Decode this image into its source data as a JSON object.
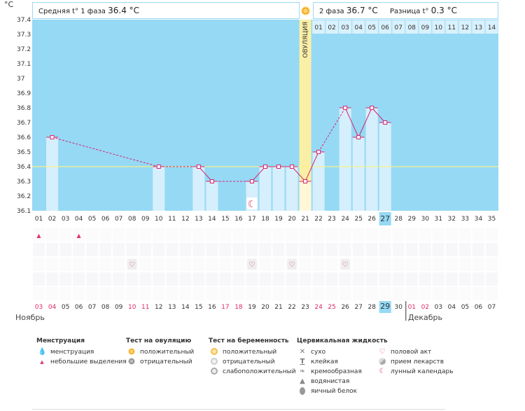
{
  "header": {
    "unit": "°C",
    "phase1_label": "Средняя t° 1 фаза",
    "phase1_value": "36.4 °C",
    "phase2_label": "2 фаза",
    "phase2_value": "36.7 °C",
    "diff_label": "Разница t°",
    "diff_value": "0.3 °C",
    "ovulation_label": "ОВУЛЯЦИЯ"
  },
  "colors": {
    "sky": "#95d9f5",
    "bar": "#d6effc",
    "bar_edge": "#a9dcf4",
    "line": "#d6246e",
    "coverline": "#f5f28a",
    "ovulation": "#fbefa6",
    "highlight": "#95d9f5"
  },
  "chart_data": {
    "type": "bar",
    "ylim": [
      36.1,
      37.4
    ],
    "yticks": [
      "36.1",
      "36.2",
      "36.3",
      "36.4",
      "36.5",
      "36.6",
      "36.7",
      "36.8",
      "36.9",
      "37",
      "37.1",
      "37.2",
      "37.3",
      "37.4"
    ],
    "coverline": 36.4,
    "cycle_days": [
      "01",
      "02",
      "03",
      "04",
      "05",
      "06",
      "07",
      "08",
      "09",
      "10",
      "11",
      "12",
      "13",
      "14",
      "15",
      "16",
      "17",
      "18",
      "19",
      "20",
      "21",
      "22",
      "23",
      "24",
      "25",
      "26",
      "27",
      "28",
      "29",
      "30",
      "31",
      "32",
      "33",
      "34",
      "35"
    ],
    "temperatures": [
      null,
      36.6,
      null,
      null,
      null,
      null,
      null,
      null,
      null,
      36.4,
      null,
      null,
      36.4,
      36.3,
      null,
      null,
      36.3,
      36.4,
      36.4,
      36.4,
      36.3,
      36.5,
      null,
      36.8,
      36.6,
      36.8,
      36.7,
      null,
      null,
      null,
      null,
      null,
      null,
      null,
      null
    ],
    "ovulation_day": 21,
    "current_day": 27,
    "luteal_days": [
      "01",
      "02",
      "03",
      "04",
      "05",
      "06",
      "07",
      "08",
      "09",
      "10",
      "11",
      "12",
      "13",
      "14"
    ],
    "moon_day": 17,
    "menstruation_days": [
      1,
      4
    ],
    "intercourse_days": [
      8,
      17,
      20,
      24
    ],
    "dates": [
      "03",
      "04",
      "05",
      "06",
      "07",
      "08",
      "09",
      "10",
      "11",
      "12",
      "13",
      "14",
      "15",
      "16",
      "17",
      "18",
      "19",
      "20",
      "21",
      "22",
      "23",
      "24",
      "25",
      "26",
      "27",
      "28",
      "29",
      "30",
      "01",
      "02",
      "03",
      "04",
      "05",
      "06",
      "07"
    ],
    "red_dates": [
      0,
      1,
      7,
      8,
      14,
      15,
      21,
      22,
      28,
      29
    ],
    "current_date_index": 26,
    "month_left": "Ноябрь",
    "month_right": "Декабрь"
  },
  "legend": {
    "menstruation": {
      "title": "Менструация",
      "items": [
        "менструация",
        "небольшие выделения"
      ]
    },
    "ovulation_test": {
      "title": "Тест на овуляцию",
      "items": [
        "положительный",
        "отрицательный"
      ]
    },
    "pregnancy_test": {
      "title": "Тест на беременность",
      "items": [
        "положительный",
        "отрицательный",
        "слабоположительный"
      ]
    },
    "cervical_fluid": {
      "title": "Цервикальная жидкость",
      "items": [
        "сухо",
        "клейкая",
        "кремообразная",
        "водянистая",
        "яичный белок"
      ]
    },
    "other": {
      "items": [
        "половой акт",
        "прием лекарств",
        "лунный календарь"
      ]
    },
    "icons": {
      "menstruation": "blood-drop-icon",
      "spotting": "small-drop-icon",
      "ovu_pos": "sun-positive-icon",
      "ovu_neg": "sun-negative-icon",
      "preg_pos": "circle-positive-icon",
      "preg_neg": "circle-negative-icon",
      "preg_weak": "circle-weak-icon",
      "dry": "cross-icon",
      "sticky": "t-icon",
      "creamy": "cream-icon",
      "watery": "water-drop-icon",
      "eggwhite": "egg-icon",
      "sex": "heart-icon",
      "meds": "pill-icon",
      "moon": "moon-icon"
    }
  }
}
